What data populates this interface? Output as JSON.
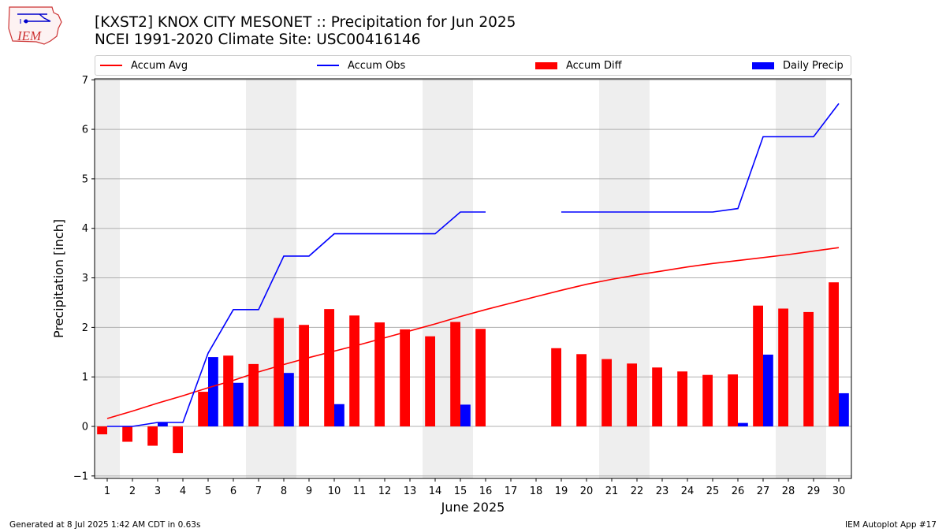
{
  "header": {
    "title_line1": "[KXST2] KNOX CITY MESONET :: Precipitation for Jun 2025",
    "title_line2": "NCEI 1991-2020 Climate Site: USC00416146",
    "logo_text": "IEM"
  },
  "footer": {
    "generated": "Generated at 8 Jul 2025 1:42 AM CDT in 0.63s",
    "app": "IEM Autoplot App #17"
  },
  "legend": {
    "accum_avg": "Accum Avg",
    "accum_obs": "Accum Obs",
    "accum_diff": "Accum Diff",
    "daily_precip": "Daily Precip"
  },
  "colors": {
    "avg": "#ff0000",
    "obs": "#0000ff",
    "diff": "#ff0000",
    "daily": "#0000ff",
    "weekend_band": "#eeeeee",
    "grid": "#b0b0b0"
  },
  "chart_data": {
    "type": "bar",
    "xlabel": "June 2025",
    "ylabel": "Precipitation [inch]",
    "xlim": [
      0.5,
      30.5
    ],
    "ylim": [
      -1.05,
      7.02
    ],
    "yticks": [
      -1,
      0,
      1,
      2,
      3,
      4,
      5,
      6,
      7
    ],
    "days": [
      1,
      2,
      3,
      4,
      5,
      6,
      7,
      8,
      9,
      10,
      11,
      12,
      13,
      14,
      15,
      16,
      17,
      18,
      19,
      20,
      21,
      22,
      23,
      24,
      25,
      26,
      27,
      28,
      29,
      30
    ],
    "weekend_spans": [
      [
        0.5,
        1.5
      ],
      [
        6.5,
        8.5
      ],
      [
        13.5,
        15.5
      ],
      [
        20.5,
        22.5
      ],
      [
        27.5,
        29.5
      ]
    ],
    "grid": "horizontal",
    "series": [
      {
        "name": "Accum Avg",
        "type": "line",
        "values": [
          0.16,
          0.31,
          0.47,
          0.62,
          0.78,
          0.93,
          1.1,
          1.25,
          1.39,
          1.52,
          1.65,
          1.79,
          1.93,
          2.07,
          2.22,
          2.36,
          2.49,
          2.62,
          2.75,
          2.87,
          2.97,
          3.06,
          3.14,
          3.22,
          3.29,
          3.35,
          3.41,
          3.47,
          3.54,
          3.61
        ]
      },
      {
        "name": "Accum Obs",
        "type": "line",
        "values": [
          0.0,
          0.0,
          0.08,
          0.08,
          1.48,
          2.36,
          2.36,
          3.44,
          3.44,
          3.89,
          3.89,
          3.89,
          3.89,
          3.89,
          4.33,
          4.33,
          null,
          null,
          4.33,
          4.33,
          4.33,
          4.33,
          4.33,
          4.33,
          4.33,
          4.4,
          5.85,
          5.85,
          5.85,
          6.52
        ]
      },
      {
        "name": "Accum Diff",
        "type": "bar",
        "values": [
          -0.16,
          -0.31,
          -0.39,
          -0.54,
          0.7,
          1.43,
          1.26,
          2.19,
          2.05,
          2.37,
          2.24,
          2.1,
          1.96,
          1.82,
          2.11,
          1.97,
          null,
          null,
          1.58,
          1.46,
          1.36,
          1.27,
          1.19,
          1.11,
          1.04,
          1.05,
          2.44,
          2.38,
          2.31,
          2.91
        ]
      },
      {
        "name": "Daily Precip",
        "type": "bar",
        "values": [
          0,
          0,
          0.08,
          0,
          1.4,
          0.88,
          0,
          1.08,
          0,
          0.45,
          0,
          0,
          0,
          0,
          0.44,
          0,
          null,
          null,
          0,
          0,
          0,
          0,
          0,
          0,
          0,
          0.07,
          1.45,
          0,
          0,
          0.67
        ]
      }
    ]
  }
}
